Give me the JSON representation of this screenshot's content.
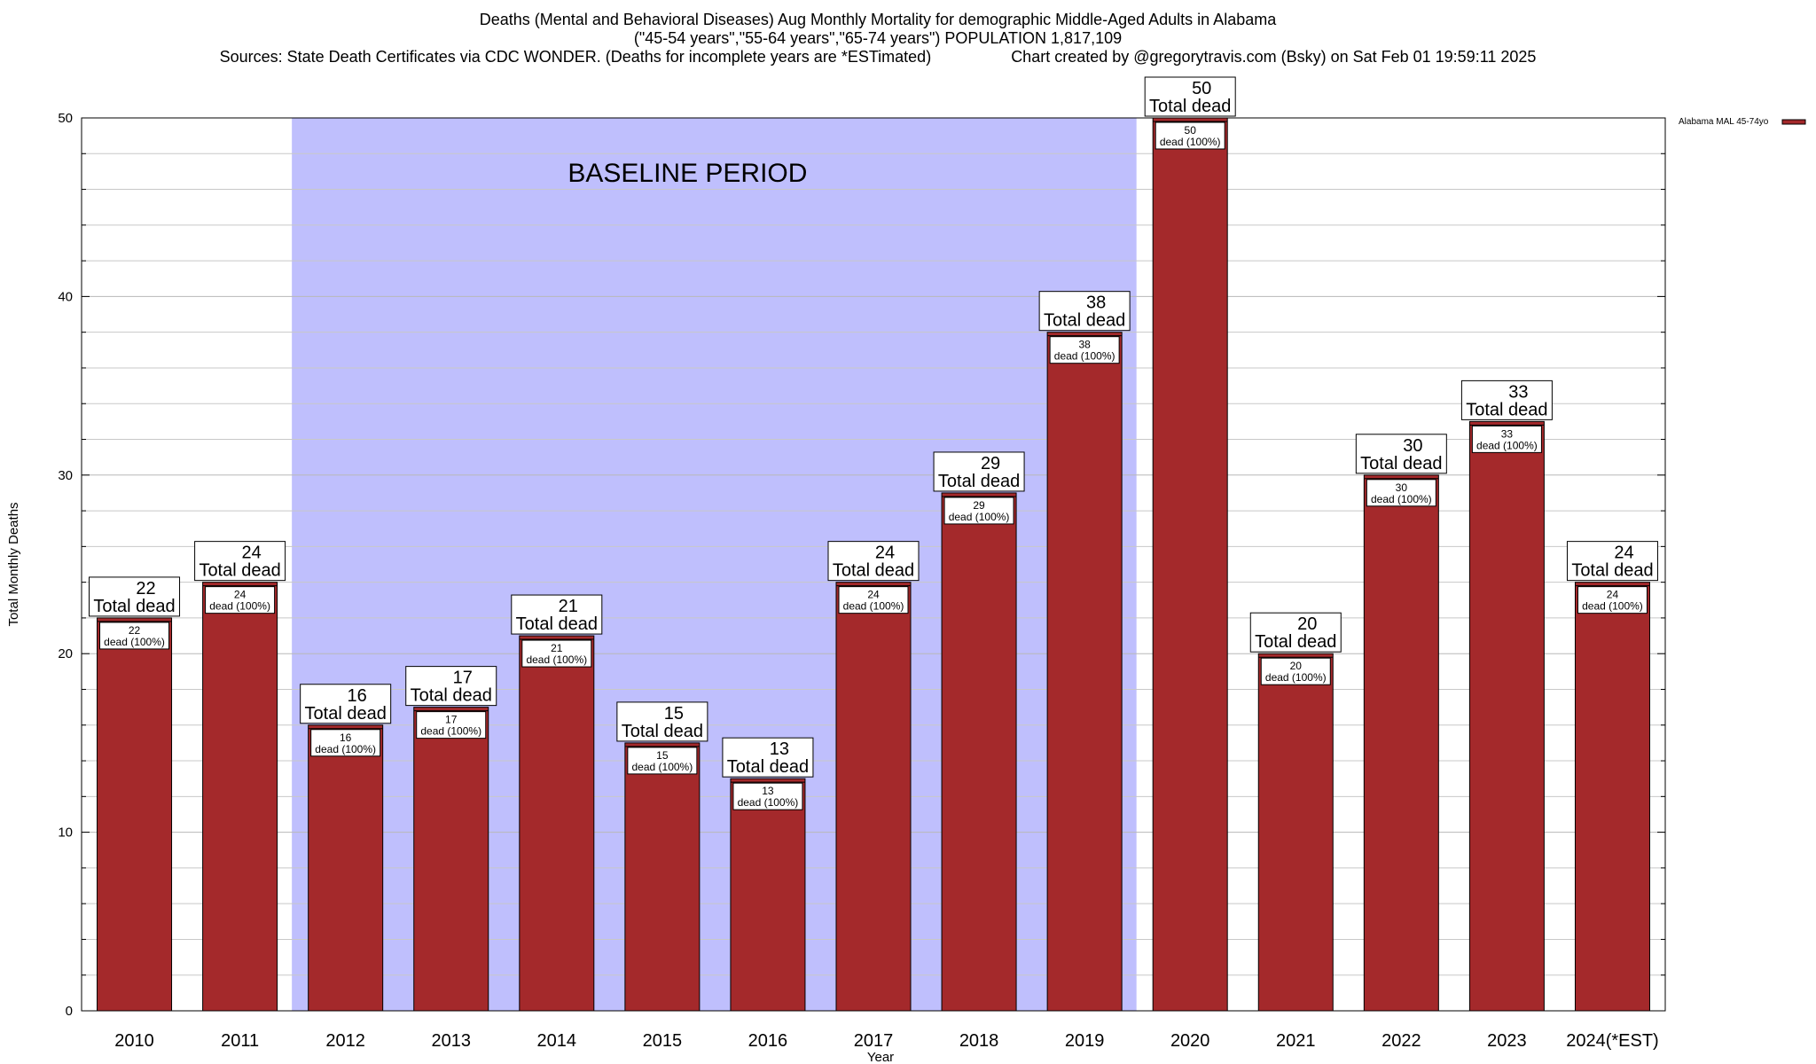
{
  "chart_data": {
    "type": "bar",
    "title": "Deaths (Mental and Behavioral Diseases) Aug Monthly Mortality for demographic Middle-Aged Adults in Alabama",
    "subtitle": "(\"45-54 years\",\"55-64 years\",\"65-74 years\") POPULATION 1,817,109",
    "sources": "Sources: State Death Certificates via CDC WONDER. (Deaths for incomplete years are *ESTimated)",
    "credit": "Chart created by @gregorytravis.com (Bsky) on Sat Feb 01 19:59:11 2025",
    "xlabel": "Year",
    "ylabel": "Total Monthly Deaths",
    "ylim": [
      0,
      50
    ],
    "yticks": [
      0,
      10,
      20,
      30,
      40,
      50
    ],
    "y_minor_step": 2,
    "categories": [
      "2010",
      "2011",
      "2012",
      "2013",
      "2014",
      "2015",
      "2016",
      "2017",
      "2018",
      "2019",
      "2020",
      "2021",
      "2022",
      "2023",
      "2024(*EST)"
    ],
    "series": [
      {
        "name": "Alabama MAL 45-74yo",
        "color": "#a4292b",
        "values": [
          22,
          24,
          16,
          17,
          21,
          15,
          13,
          24,
          29,
          38,
          50,
          20,
          30,
          33,
          24
        ]
      }
    ],
    "top_label_suffix": "Total dead",
    "inner_label_suffix": "dead (100%)",
    "baseline": {
      "label": "BASELINE PERIOD",
      "from": "2012",
      "to": "2019",
      "color": "#bfbffd"
    },
    "grid": true,
    "legend_position": "top-right"
  }
}
